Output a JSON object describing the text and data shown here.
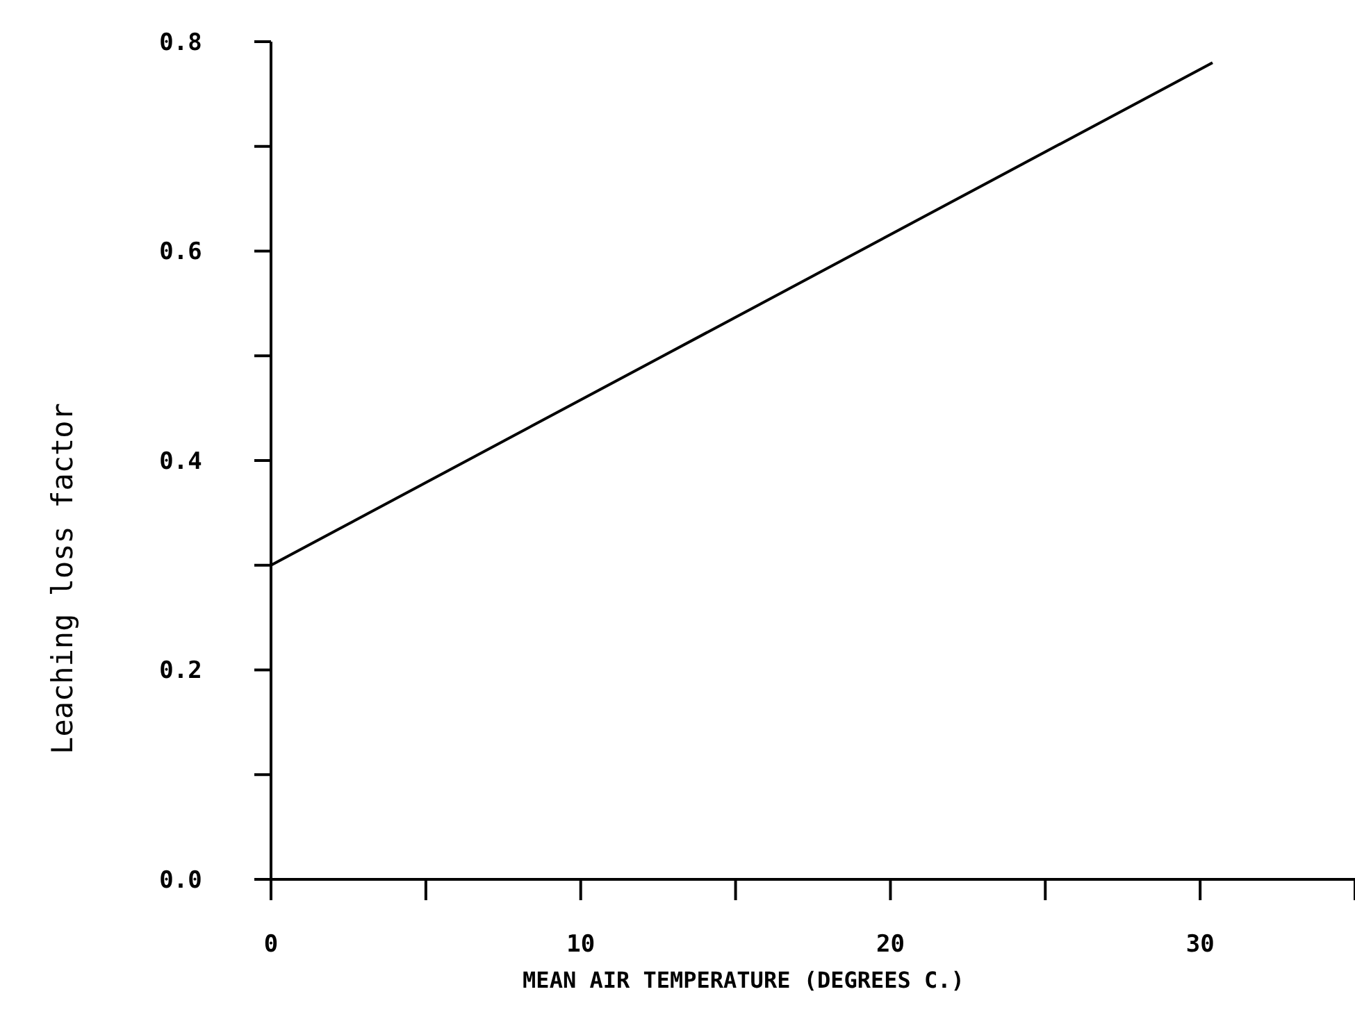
{
  "chart_data": {
    "type": "line",
    "xlabel": "MEAN AIR TEMPERATURE (DEGREES C.)",
    "ylabel": "Leaching loss factor",
    "x": [
      0,
      30.4
    ],
    "series": [
      {
        "color": "#000000",
        "values": [
          0.3,
          0.78
        ]
      }
    ],
    "xlim": [
      0,
      35
    ],
    "xticks": [
      0,
      {
        "value": 5,
        "label": null
      },
      10,
      {
        "value": 15,
        "label": null
      },
      20,
      {
        "value": 25,
        "label": null
      },
      30,
      {
        "value": 35,
        "label": null
      }
    ],
    "ylim": [
      0,
      0.8
    ],
    "yticks": [
      {
        "value": 0,
        "label": "0.0"
      },
      {
        "value": 0.1,
        "label": null
      },
      0.2,
      {
        "value": 0.3,
        "label": null
      },
      0.4,
      {
        "value": 0.5,
        "label": null
      },
      0.6,
      {
        "value": 0.7,
        "label": null
      },
      0.8
    ],
    "grid": false,
    "marker": "none",
    "line_style": "solid"
  }
}
